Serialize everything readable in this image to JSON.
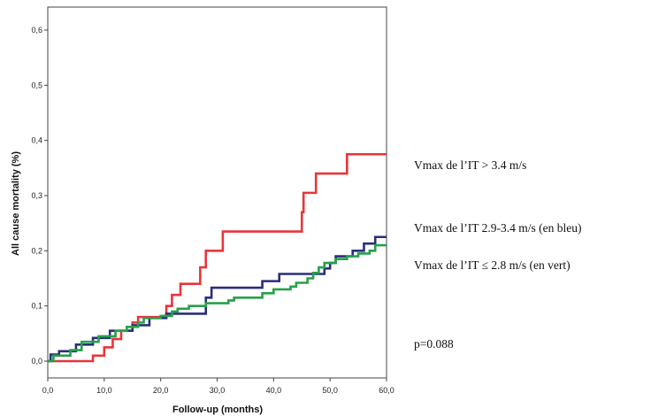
{
  "chart_data": {
    "type": "line",
    "step": true,
    "xlabel": "Follow-up (months)",
    "ylabel": "All cause mortality (%)",
    "xlim": [
      0,
      60
    ],
    "ylim": [
      0,
      0.6
    ],
    "x_ticks": [
      "0,0",
      "10,0",
      "20,0",
      "30,0",
      "40,0",
      "50,0",
      "60,0"
    ],
    "y_ticks": [
      "0,0",
      "0,1",
      "0,2",
      "0,3",
      "0,4",
      "0,5",
      "0,6"
    ],
    "grid": false,
    "series": [
      {
        "color": "#e8353b",
        "points": [
          [
            0,
            0
          ],
          [
            8,
            0
          ],
          [
            8,
            0.01
          ],
          [
            10,
            0.01
          ],
          [
            10,
            0.025
          ],
          [
            11.5,
            0.025
          ],
          [
            11.5,
            0.04
          ],
          [
            13,
            0.04
          ],
          [
            13,
            0.055
          ],
          [
            15,
            0.055
          ],
          [
            15,
            0.07
          ],
          [
            16,
            0.07
          ],
          [
            16,
            0.08
          ],
          [
            21,
            0.08
          ],
          [
            21,
            0.1
          ],
          [
            22,
            0.1
          ],
          [
            22,
            0.12
          ],
          [
            23.5,
            0.12
          ],
          [
            23.5,
            0.14
          ],
          [
            27,
            0.14
          ],
          [
            27,
            0.17
          ],
          [
            28,
            0.17
          ],
          [
            28,
            0.2
          ],
          [
            31,
            0.2
          ],
          [
            31,
            0.235
          ],
          [
            45,
            0.235
          ],
          [
            45,
            0.27
          ],
          [
            45.3,
            0.27
          ],
          [
            45.3,
            0.305
          ],
          [
            47.5,
            0.305
          ],
          [
            47.5,
            0.34
          ],
          [
            53,
            0.34
          ],
          [
            53,
            0.375
          ],
          [
            60,
            0.375
          ]
        ]
      },
      {
        "color": "#2a2f7a",
        "points": [
          [
            0,
            0
          ],
          [
            0.5,
            0
          ],
          [
            0.5,
            0.012
          ],
          [
            2,
            0.012
          ],
          [
            2,
            0.018
          ],
          [
            5,
            0.018
          ],
          [
            5,
            0.03
          ],
          [
            8,
            0.03
          ],
          [
            8,
            0.042
          ],
          [
            11,
            0.042
          ],
          [
            11,
            0.055
          ],
          [
            15,
            0.055
          ],
          [
            15,
            0.065
          ],
          [
            18,
            0.065
          ],
          [
            18,
            0.078
          ],
          [
            21,
            0.078
          ],
          [
            21,
            0.086
          ],
          [
            28,
            0.086
          ],
          [
            28,
            0.115
          ],
          [
            29,
            0.115
          ],
          [
            29,
            0.133
          ],
          [
            38,
            0.133
          ],
          [
            38,
            0.145
          ],
          [
            41,
            0.145
          ],
          [
            41,
            0.158
          ],
          [
            49,
            0.158
          ],
          [
            49,
            0.168
          ],
          [
            50,
            0.168
          ],
          [
            50,
            0.178
          ],
          [
            51,
            0.178
          ],
          [
            51,
            0.19
          ],
          [
            54,
            0.19
          ],
          [
            54,
            0.2
          ],
          [
            56,
            0.2
          ],
          [
            56,
            0.213
          ],
          [
            58,
            0.213
          ],
          [
            58,
            0.225
          ],
          [
            60,
            0.225
          ]
        ]
      },
      {
        "color": "#27a04a",
        "points": [
          [
            0,
            0
          ],
          [
            1,
            0
          ],
          [
            1,
            0.01
          ],
          [
            4,
            0.01
          ],
          [
            4,
            0.02
          ],
          [
            6,
            0.02
          ],
          [
            6,
            0.035
          ],
          [
            9,
            0.035
          ],
          [
            9,
            0.045
          ],
          [
            12,
            0.045
          ],
          [
            12,
            0.055
          ],
          [
            14,
            0.055
          ],
          [
            14,
            0.062
          ],
          [
            16,
            0.062
          ],
          [
            16,
            0.07
          ],
          [
            17,
            0.07
          ],
          [
            17,
            0.078
          ],
          [
            20,
            0.078
          ],
          [
            20,
            0.082
          ],
          [
            22,
            0.082
          ],
          [
            22,
            0.09
          ],
          [
            23,
            0.09
          ],
          [
            23,
            0.095
          ],
          [
            25,
            0.095
          ],
          [
            25,
            0.1
          ],
          [
            28,
            0.1
          ],
          [
            28,
            0.105
          ],
          [
            32,
            0.105
          ],
          [
            32,
            0.11
          ],
          [
            33,
            0.11
          ],
          [
            33,
            0.115
          ],
          [
            38,
            0.115
          ],
          [
            38,
            0.123
          ],
          [
            40,
            0.123
          ],
          [
            40,
            0.13
          ],
          [
            43,
            0.13
          ],
          [
            43,
            0.135
          ],
          [
            44,
            0.135
          ],
          [
            44,
            0.142
          ],
          [
            46,
            0.142
          ],
          [
            46,
            0.15
          ],
          [
            47,
            0.15
          ],
          [
            47,
            0.16
          ],
          [
            48,
            0.16
          ],
          [
            48,
            0.17
          ],
          [
            49,
            0.17
          ],
          [
            49,
            0.178
          ],
          [
            51,
            0.178
          ],
          [
            51,
            0.185
          ],
          [
            53,
            0.185
          ],
          [
            53,
            0.19
          ],
          [
            55,
            0.19
          ],
          [
            55,
            0.195
          ],
          [
            57,
            0.195
          ],
          [
            57,
            0.2
          ],
          [
            58,
            0.2
          ],
          [
            58,
            0.21
          ],
          [
            60,
            0.21
          ]
        ]
      }
    ]
  },
  "annotations": {
    "high": "Vmax de l’IT > 3.4 m/s",
    "mid": "Vmax de l’IT  2.9-3.4 m/s (en bleu)",
    "low": "Vmax de l’IT ≤ 2.8 m/s (en vert)",
    "pvalue": "p=0.088"
  }
}
